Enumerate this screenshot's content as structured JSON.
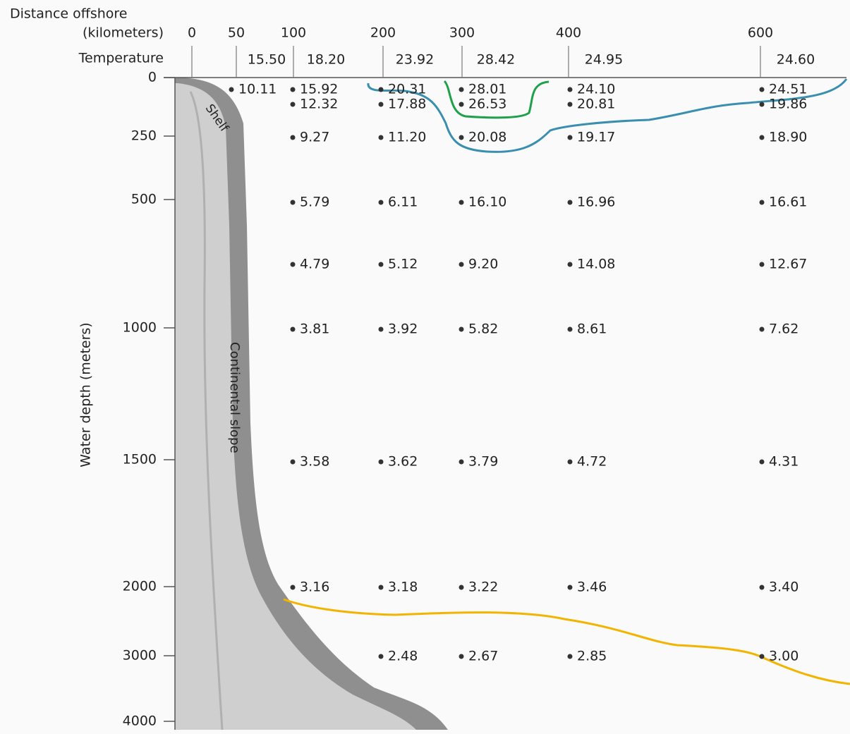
{
  "x_axis": {
    "title_lines": [
      "Distance offshore",
      "(kilometers)"
    ],
    "ticks": [
      "0",
      "50",
      "100",
      "200",
      "300",
      "400",
      "600"
    ]
  },
  "temperature_label": "Temperature",
  "surface_temperatures": [
    "15.50",
    "18.20",
    "23.92",
    "28.42",
    "24.95",
    "24.60"
  ],
  "y_axis": {
    "title": "Water depth (meters)",
    "ticks": [
      "0",
      "250",
      "500",
      "1000",
      "1500",
      "2000",
      "3000",
      "4000"
    ]
  },
  "profile_labels": [
    "Shelf",
    "Continental slope"
  ],
  "columns": [
    [
      "10.11"
    ],
    [
      "15.92",
      "12.32",
      "9.27",
      "5.79",
      "4.79",
      "3.81",
      "3.58",
      "3.16"
    ],
    [
      "20.31",
      "17.88",
      "11.20",
      "6.11",
      "5.12",
      "3.92",
      "3.62",
      "3.18",
      "2.48"
    ],
    [
      "28.01",
      "26.53",
      "20.08",
      "16.10",
      "9.20",
      "5.82",
      "3.79",
      "3.22",
      "2.67"
    ],
    [
      "24.10",
      "20.81",
      "19.17",
      "16.96",
      "14.08",
      "8.61",
      "4.72",
      "3.46",
      "2.85"
    ],
    [
      "24.51",
      "19.86",
      "18.90",
      "16.61",
      "12.67",
      "7.62",
      "4.31",
      "3.40",
      "3.00"
    ]
  ]
}
